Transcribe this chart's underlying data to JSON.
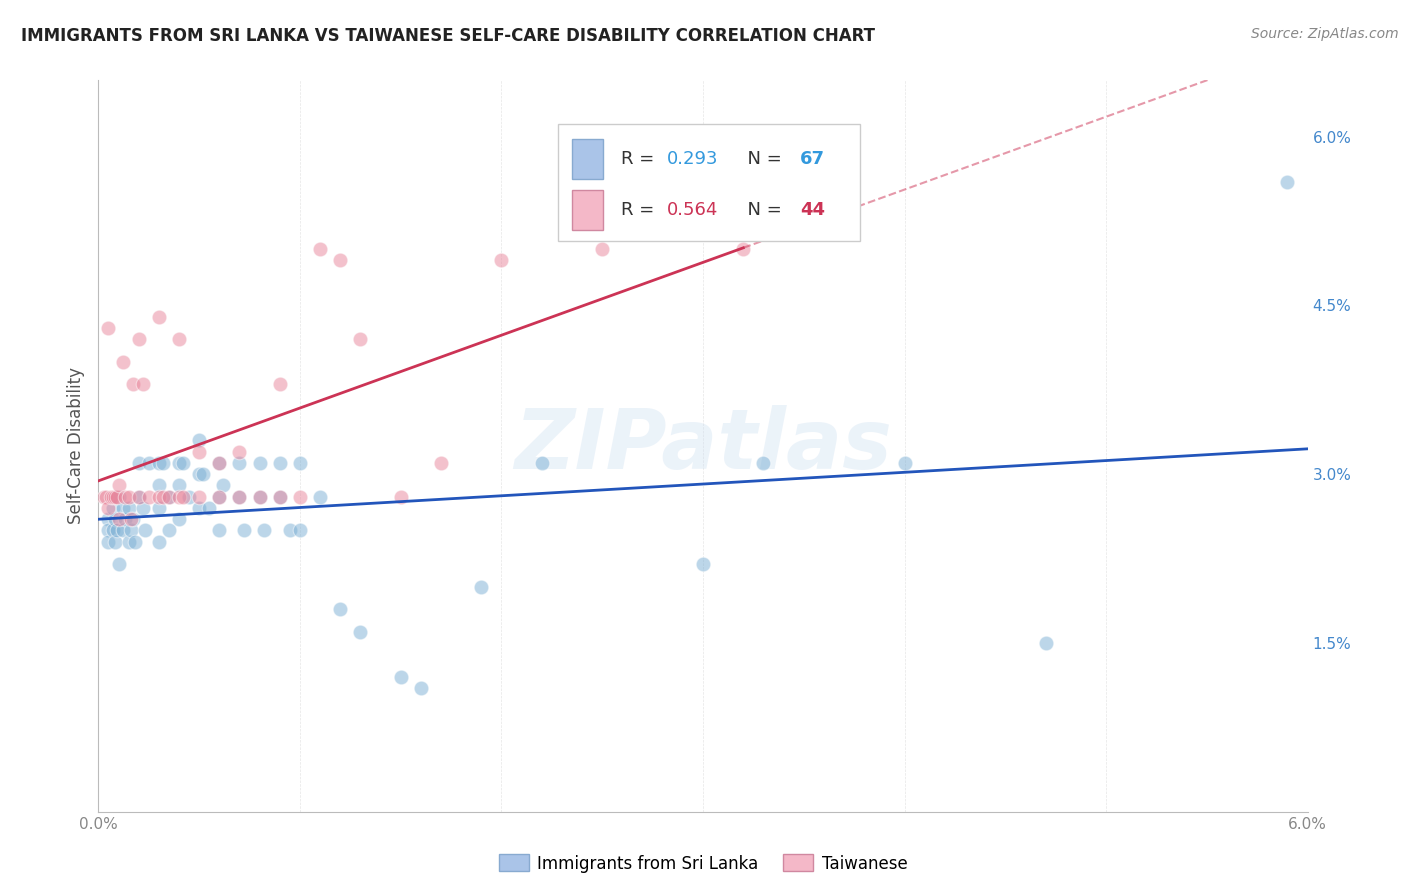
{
  "title": "IMMIGRANTS FROM SRI LANKA VS TAIWANESE SELF-CARE DISABILITY CORRELATION CHART",
  "source": "Source: ZipAtlas.com",
  "ylabel": "Self-Care Disability",
  "right_yticks": [
    "6.0%",
    "4.5%",
    "3.0%",
    "1.5%"
  ],
  "right_ytick_vals": [
    0.06,
    0.045,
    0.03,
    0.015
  ],
  "xlim": [
    0.0,
    0.06
  ],
  "ylim": [
    0.0,
    0.065
  ],
  "legend1_r": "0.293",
  "legend1_n": "67",
  "legend2_r": "0.564",
  "legend2_n": "44",
  "legend1_color": "#aac4e8",
  "legend2_color": "#f4b8c8",
  "series1_name": "Immigrants from Sri Lanka",
  "series2_name": "Taiwanese",
  "series1_color": "#7bafd4",
  "series2_color": "#e8849a",
  "trend1_color": "#2255bb",
  "trend2_color": "#cc3355",
  "watermark": "ZIPatlas",
  "sri_lanka_x": [
    0.0005,
    0.0005,
    0.0005,
    0.0007,
    0.0007,
    0.0008,
    0.0008,
    0.0009,
    0.001,
    0.001,
    0.0012,
    0.0012,
    0.0013,
    0.0015,
    0.0015,
    0.0016,
    0.0017,
    0.0018,
    0.002,
    0.002,
    0.0022,
    0.0023,
    0.0025,
    0.003,
    0.003,
    0.003,
    0.003,
    0.0032,
    0.0035,
    0.0035,
    0.004,
    0.004,
    0.004,
    0.0042,
    0.0045,
    0.005,
    0.005,
    0.005,
    0.0052,
    0.0055,
    0.006,
    0.006,
    0.006,
    0.0062,
    0.007,
    0.007,
    0.0072,
    0.008,
    0.008,
    0.0082,
    0.009,
    0.009,
    0.0095,
    0.01,
    0.01,
    0.011,
    0.012,
    0.013,
    0.015,
    0.016,
    0.019,
    0.022,
    0.03,
    0.033,
    0.04,
    0.047,
    0.059
  ],
  "sri_lanka_y": [
    0.026,
    0.025,
    0.024,
    0.027,
    0.025,
    0.026,
    0.024,
    0.025,
    0.028,
    0.022,
    0.027,
    0.025,
    0.026,
    0.027,
    0.024,
    0.025,
    0.026,
    0.024,
    0.031,
    0.028,
    0.027,
    0.025,
    0.031,
    0.031,
    0.029,
    0.027,
    0.024,
    0.031,
    0.028,
    0.025,
    0.031,
    0.029,
    0.026,
    0.031,
    0.028,
    0.033,
    0.03,
    0.027,
    0.03,
    0.027,
    0.031,
    0.028,
    0.025,
    0.029,
    0.031,
    0.028,
    0.025,
    0.031,
    0.028,
    0.025,
    0.031,
    0.028,
    0.025,
    0.031,
    0.025,
    0.028,
    0.018,
    0.016,
    0.012,
    0.011,
    0.02,
    0.031,
    0.022,
    0.031,
    0.031,
    0.015,
    0.056
  ],
  "taiwanese_x": [
    0.0003,
    0.0004,
    0.0005,
    0.0005,
    0.0006,
    0.0007,
    0.0008,
    0.0009,
    0.001,
    0.001,
    0.0012,
    0.0013,
    0.0015,
    0.0016,
    0.0017,
    0.002,
    0.002,
    0.0022,
    0.0025,
    0.003,
    0.003,
    0.0032,
    0.0035,
    0.004,
    0.004,
    0.0042,
    0.005,
    0.005,
    0.006,
    0.006,
    0.007,
    0.007,
    0.008,
    0.009,
    0.009,
    0.01,
    0.011,
    0.012,
    0.013,
    0.015,
    0.017,
    0.02,
    0.025,
    0.032
  ],
  "taiwanese_y": [
    0.028,
    0.028,
    0.043,
    0.027,
    0.028,
    0.028,
    0.028,
    0.028,
    0.029,
    0.026,
    0.04,
    0.028,
    0.028,
    0.026,
    0.038,
    0.042,
    0.028,
    0.038,
    0.028,
    0.044,
    0.028,
    0.028,
    0.028,
    0.042,
    0.028,
    0.028,
    0.032,
    0.028,
    0.031,
    0.028,
    0.032,
    0.028,
    0.028,
    0.038,
    0.028,
    0.028,
    0.05,
    0.049,
    0.042,
    0.028,
    0.031,
    0.049,
    0.05,
    0.05
  ]
}
